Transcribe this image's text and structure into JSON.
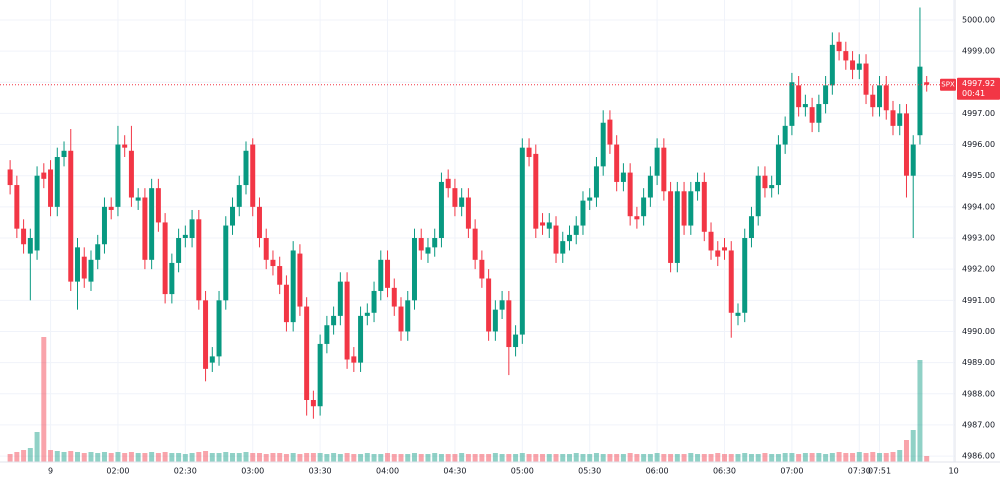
{
  "chart_data": {
    "type": "candlestick",
    "symbol": "SPX",
    "last": 4997.92,
    "countdown": "00:41",
    "up_color": "#089981",
    "down_color": "#f23645",
    "grid": true,
    "ylim": [
      4985.81,
      5000.64
    ],
    "yticks": [
      {
        "value": 4986,
        "label": "4986.00"
      },
      {
        "value": 4987,
        "label": "4987.00"
      },
      {
        "value": 4988,
        "label": "4988.00"
      },
      {
        "value": 4989,
        "label": "4989.00"
      },
      {
        "value": 4990,
        "label": "4990.00"
      },
      {
        "value": 4991,
        "label": "4991.00"
      },
      {
        "value": 4992,
        "label": "4992.00"
      },
      {
        "value": 4993,
        "label": "4993.00"
      },
      {
        "value": 4994,
        "label": "4994.00"
      },
      {
        "value": 4995,
        "label": "4995.00"
      },
      {
        "value": 4996,
        "label": "4996.00"
      },
      {
        "value": 4997,
        "label": "4997.00"
      },
      {
        "value": 4998,
        "label": "4998.00"
      },
      {
        "value": 4999,
        "label": "4999.00"
      },
      {
        "value": 5000,
        "label": "5000.00"
      }
    ],
    "xlim": [
      -1.5,
      140.2
    ],
    "xticks": [
      {
        "value": 6,
        "label": "9"
      },
      {
        "value": 16,
        "label": "02:00"
      },
      {
        "value": 26,
        "label": "02:30"
      },
      {
        "value": 36,
        "label": "03:00"
      },
      {
        "value": 46,
        "label": "03:30"
      },
      {
        "value": 56,
        "label": "04:00"
      },
      {
        "value": 66,
        "label": "04:30"
      },
      {
        "value": 76,
        "label": "05:00"
      },
      {
        "value": 86,
        "label": "05:30"
      },
      {
        "value": 96,
        "label": "06:00"
      },
      {
        "value": 106,
        "label": "06:30"
      },
      {
        "value": 116,
        "label": "07:00"
      },
      {
        "value": 126,
        "label": "07:30"
      },
      {
        "value": 129,
        "label": "07:51"
      },
      {
        "value": 140,
        "label": "10"
      }
    ],
    "open": [
      4995.2,
      4994.7,
      4993.3,
      4992.5,
      4992.6,
      4995.1,
      4995.2,
      4994.0,
      4995.6,
      4995.8,
      4991.6,
      4992.4,
      4991.6,
      4992.3,
      4992.8,
      4994.0,
      4994.0,
      4996.0,
      4995.8,
      4994.2,
      4994.3,
      4992.3,
      4994.6,
      4993.5,
      4991.2,
      4992.2,
      4993.0,
      4993.0,
      4993.6,
      4991.0,
      4989.0,
      4989.2,
      4991.0,
      4993.4,
      4994.0,
      4994.7,
      4996.0,
      4994.0,
      4993.0,
      4992.3,
      4992.1,
      4991.5,
      4990.3,
      4992.5,
      4990.8,
      4987.8,
      4987.6,
      4989.6,
      4990.2,
      4990.5,
      4991.6,
      4989.2,
      4989.0,
      4990.5,
      4990.6,
      4991.3,
      4992.3,
      4991.4,
      4990.8,
      4990.0,
      4991.0,
      4993.0,
      4992.5,
      4992.7,
      4993.0,
      4994.9,
      4994.6,
      4994.0,
      4994.3,
      4993.3,
      4992.3,
      4991.7,
      4990.0,
      4990.7,
      4991.0,
      4989.5,
      4989.9,
      4995.9,
      4995.7,
      4993.5,
      4993.3,
      4993.4,
      4992.5,
      4992.9,
      4993.1,
      4993.4,
      4994.2,
      4994.3,
      4995.3,
      4996.8,
      4996.0,
      4994.8,
      4995.1,
      4993.7,
      4993.7,
      4994.3,
      4995.0,
      4995.9,
      4994.5,
      4992.2,
      4994.5,
      4993.4,
      4994.5,
      4994.8,
      4993.2,
      4992.6,
      4992.7,
      4992.6,
      4990.5,
      4990.6,
      4993.0,
      4993.7,
      4995.0,
      4994.6,
      4994.7,
      4996.0,
      4996.6,
      4997.9,
      4997.2,
      4997.2,
      4996.7,
      4997.3,
      4997.9,
      4999.3,
      4999.0,
      4998.7,
      4998.4,
      4998.6,
      4997.6,
      4997.2,
      4997.9,
      4997.1,
      4996.6,
      4997.0,
      4995.0,
      4996.3,
      4998.0
    ],
    "high": [
      4995.5,
      4995.0,
      4993.6,
      4993.3,
      4995.3,
      4995.4,
      4995.5,
      4995.9,
      4996.1,
      4996.5,
      4993.0,
      4992.7,
      4992.6,
      4993.1,
      4994.3,
      4994.3,
      4996.6,
      4996.3,
      4996.6,
      4994.6,
      4994.6,
      4994.9,
      4994.9,
      4993.8,
      4992.5,
      4993.3,
      4993.4,
      4993.9,
      4993.9,
      4991.3,
      4989.5,
      4991.3,
      4993.7,
      4994.3,
      4995.0,
      4996.1,
      4996.2,
      4994.3,
      4993.3,
      4992.6,
      4992.4,
      4991.8,
      4992.9,
      4992.8,
      4991.1,
      4988.1,
      4989.9,
      4990.5,
      4990.8,
      4991.9,
      4991.9,
      4989.5,
      4990.8,
      4990.9,
      4991.6,
      4992.6,
      4992.6,
      4991.7,
      4991.1,
      4991.3,
      4993.3,
      4993.3,
      4993.0,
      4993.3,
      4995.1,
      4995.2,
      4994.9,
      4994.6,
      4994.6,
      4993.6,
      4992.6,
      4992.0,
      4991.0,
      4991.3,
      4991.3,
      4990.2,
      4996.2,
      4996.2,
      4996.0,
      4993.8,
      4993.8,
      4993.7,
      4993.2,
      4993.4,
      4993.7,
      4994.5,
      4994.6,
      4995.6,
      4997.1,
      4997.1,
      4996.3,
      4995.4,
      4995.4,
      4994.0,
      4994.6,
      4995.3,
      4996.2,
      4996.2,
      4994.8,
      4994.8,
      4994.8,
      4994.8,
      4995.1,
      4995.1,
      4993.5,
      4992.9,
      4993.0,
      4992.9,
      4990.9,
      4993.3,
      4994.0,
      4995.3,
      4995.3,
      4995.0,
      4996.3,
      4996.9,
      4998.3,
      4998.2,
      4997.6,
      4997.5,
      4997.6,
      4998.2,
      4999.6,
      4999.6,
      4999.3,
      4999.0,
      4998.9,
      4998.9,
      4997.9,
      4998.2,
      4998.2,
      4997.4,
      4997.3,
      4997.3,
      4996.3,
      5000.4,
      4998.2
    ],
    "low": [
      4994.4,
      4993.0,
      4992.5,
      4991.0,
      4992.3,
      4994.6,
      4993.7,
      4993.7,
      4995.3,
      4991.3,
      4990.7,
      4991.4,
      4991.3,
      4992.0,
      4992.5,
      4993.6,
      4993.7,
      4995.6,
      4994.0,
      4993.9,
      4992.0,
      4992.0,
      4993.2,
      4990.9,
      4990.9,
      4991.9,
      4992.7,
      4992.7,
      4990.7,
      4988.4,
      4988.7,
      4988.9,
      4990.7,
      4993.1,
      4993.7,
      4994.4,
      4993.7,
      4992.7,
      4992.0,
      4991.8,
      4991.2,
      4990.0,
      4990.0,
      4990.5,
      4987.3,
      4987.2,
      4987.3,
      4989.3,
      4989.9,
      4990.2,
      4988.8,
      4988.7,
      4988.7,
      4990.2,
      4990.3,
      4991.0,
      4991.1,
      4990.5,
      4989.7,
      4989.7,
      4990.7,
      4992.3,
      4992.2,
      4992.4,
      4992.7,
      4994.3,
      4993.7,
      4993.7,
      4993.0,
      4992.0,
      4991.4,
      4989.7,
      4989.7,
      4990.4,
      4988.6,
      4989.2,
      4989.6,
      4995.3,
      4993.0,
      4993.1,
      4993.0,
      4992.2,
      4992.2,
      4992.6,
      4992.8,
      4993.1,
      4993.9,
      4994.0,
      4995.0,
      4995.7,
      4994.5,
      4994.5,
      4993.4,
      4993.3,
      4993.4,
      4994.0,
      4994.7,
      4994.2,
      4991.9,
      4991.9,
      4993.1,
      4993.1,
      4994.2,
      4992.9,
      4992.3,
      4992.1,
      4992.3,
      4989.8,
      4990.2,
      4990.3,
      4992.7,
      4993.4,
      4994.3,
      4994.3,
      4994.4,
      4995.7,
      4996.3,
      4996.9,
      4996.9,
      4996.4,
      4996.4,
      4997.0,
      4997.6,
      4998.7,
      4998.4,
      4998.1,
      4998.1,
      4997.3,
      4996.9,
      4996.9,
      4996.8,
      4996.3,
      4996.3,
      4994.3,
      4993.0,
      4996.0,
      4997.7
    ],
    "close": [
      4994.7,
      4993.3,
      4992.8,
      4993.0,
      4995.0,
      4994.9,
      4994.0,
      4995.6,
      4995.8,
      4991.6,
      4992.7,
      4991.7,
      4992.3,
      4992.8,
      4994.0,
      4993.9,
      4996.0,
      4995.9,
      4994.3,
      4994.3,
      4992.3,
      4994.6,
      4993.5,
      4991.2,
      4992.2,
      4993.0,
      4993.1,
      4993.6,
      4991.0,
      4988.8,
      4989.2,
      4991.0,
      4993.4,
      4994.0,
      4994.7,
      4995.8,
      4994.0,
      4993.0,
      4992.3,
      4992.1,
      4991.5,
      4990.3,
      4992.6,
      4990.8,
      4987.8,
      4987.6,
      4989.6,
      4990.2,
      4990.5,
      4991.6,
      4989.1,
      4989.0,
      4990.5,
      4990.6,
      4991.3,
      4992.3,
      4991.4,
      4990.8,
      4990.0,
      4991.0,
      4993.0,
      4992.6,
      4992.7,
      4993.0,
      4994.8,
      4994.6,
      4994.0,
      4994.3,
      4993.3,
      4992.3,
      4991.7,
      4990.0,
      4990.7,
      4991.0,
      4989.5,
      4989.9,
      4995.9,
      4995.6,
      4993.3,
      4993.4,
      4993.5,
      4992.5,
      4992.9,
      4993.1,
      4993.4,
      4994.2,
      4994.3,
      4995.3,
      4996.7,
      4996.0,
      4994.8,
      4995.1,
      4993.7,
      4993.6,
      4994.3,
      4995.0,
      4995.9,
      4994.5,
      4992.2,
      4994.5,
      4993.4,
      4994.5,
      4994.8,
      4993.2,
      4992.6,
      4992.4,
      4992.6,
      4990.6,
      4990.6,
      4993.0,
      4993.7,
      4995.0,
      4994.6,
      4994.7,
      4996.0,
      4996.6,
      4998.0,
      4997.2,
      4997.3,
      4996.7,
      4997.3,
      4997.9,
      4999.2,
      4999.0,
      4998.7,
      4998.4,
      4998.6,
      4997.6,
      4997.2,
      4997.9,
      4997.1,
      4996.6,
      4997.0,
      4995.0,
      4996.0,
      4998.5,
      4997.92
    ],
    "volume": [
      8,
      10,
      12,
      14,
      30,
      125,
      12,
      11,
      10,
      11,
      10,
      9,
      10,
      9,
      10,
      9,
      10,
      9,
      10,
      9,
      9,
      10,
      9,
      10,
      9,
      9,
      8,
      9,
      10,
      11,
      9,
      9,
      10,
      9,
      9,
      10,
      9,
      9,
      8,
      9,
      9,
      8,
      9,
      8,
      9,
      9,
      9,
      8,
      9,
      8,
      9,
      8,
      8,
      9,
      8,
      8,
      9,
      8,
      8,
      8,
      9,
      8,
      8,
      9,
      8,
      8,
      8,
      9,
      8,
      8,
      8,
      8,
      9,
      8,
      8,
      8,
      9,
      8,
      8,
      8,
      8,
      8,
      8,
      8,
      9,
      8,
      8,
      9,
      8,
      8,
      8,
      8,
      9,
      8,
      8,
      8,
      9,
      8,
      8,
      8,
      8,
      9,
      8,
      8,
      8,
      9,
      8,
      8,
      8,
      9,
      8,
      8,
      9,
      8,
      8,
      9,
      9,
      8,
      9,
      9,
      9,
      8,
      9,
      10,
      9,
      9,
      10,
      9,
      10,
      9,
      9,
      10,
      12,
      22,
      32,
      102,
      6
    ]
  }
}
